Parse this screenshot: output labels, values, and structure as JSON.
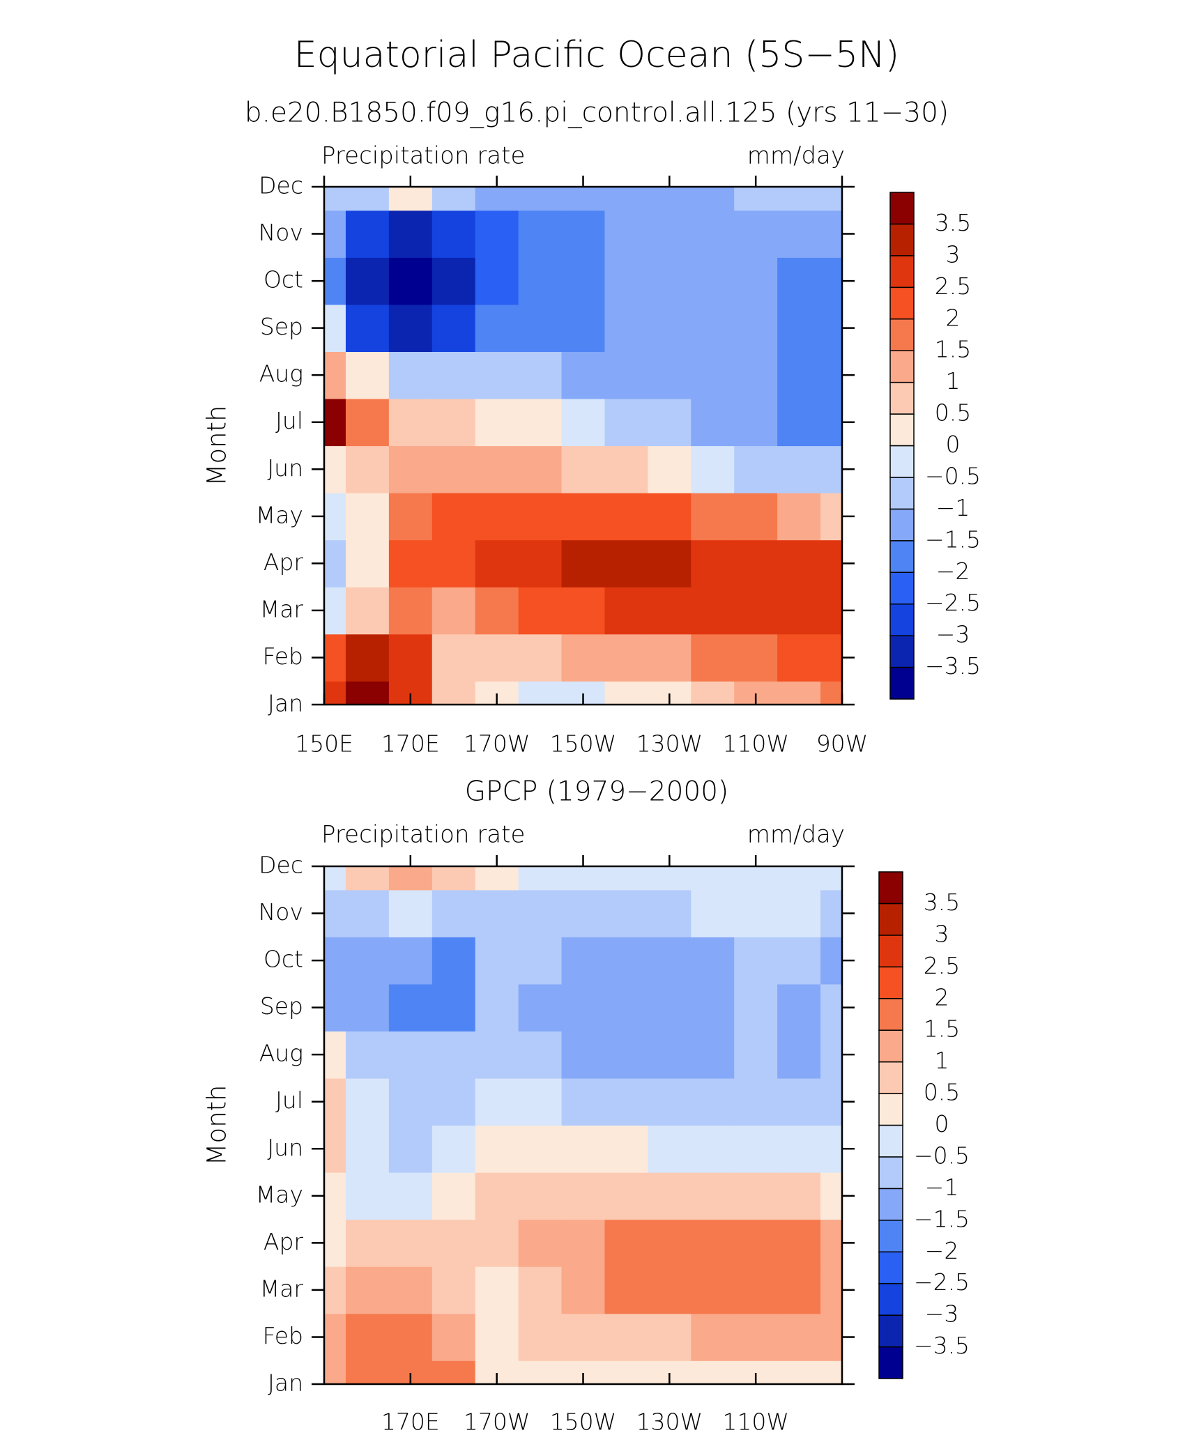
{
  "title": "Equatorial Pacific Ocean (5S−5N)",
  "chart_data": [
    {
      "type": "contour",
      "title": "b.e20.B1850.f09_g16.pi_control.all.125 (yrs 11−30)",
      "left_label": "Precipitation rate",
      "right_label": "mm/day",
      "y_label": "Month",
      "categories": [
        "Jan",
        "Feb",
        "Mar",
        "Apr",
        "May",
        "Jun",
        "Jul",
        "Aug",
        "Sep",
        "Oct",
        "Nov",
        "Dec"
      ],
      "x": [
        150,
        160,
        170,
        180,
        190,
        200,
        210,
        220,
        230,
        240,
        250,
        260,
        270
      ],
      "xlim": [
        150,
        270
      ],
      "xticks": [
        {
          "value": 150,
          "label": "150E"
        },
        {
          "value": 170,
          "label": "170E"
        },
        {
          "value": 190,
          "label": "170W"
        },
        {
          "value": 210,
          "label": "150W"
        },
        {
          "value": 230,
          "label": "130W"
        },
        {
          "value": 250,
          "label": "110W"
        },
        {
          "value": 270,
          "label": "90W"
        }
      ],
      "z": [
        [
          2.5,
          3.5,
          2.5,
          0.5,
          0.3,
          -0.3,
          -0.3,
          0.2,
          0.3,
          0.7,
          1,
          1.3,
          1.8
        ],
        [
          2,
          3,
          2.5,
          0.7,
          0.7,
          0.8,
          1,
          1.2,
          1.4,
          1.6,
          1.8,
          2,
          2.3
        ],
        [
          -0.3,
          0.5,
          1.5,
          1.3,
          1.8,
          2,
          2.3,
          2.5,
          2.6,
          2.7,
          2.8,
          2.8,
          2.8
        ],
        [
          -0.7,
          0.3,
          2,
          2.3,
          2.8,
          2.8,
          3,
          3.2,
          3.2,
          2.9,
          2.7,
          2.6,
          2.6
        ],
        [
          -0.3,
          0.3,
          1.5,
          2,
          2.3,
          2.2,
          2.2,
          2,
          2,
          1.8,
          1.5,
          1.2,
          0.8
        ],
        [
          0.3,
          0.7,
          1.3,
          1.3,
          1.2,
          1.2,
          0.9,
          0.7,
          0.3,
          -0.3,
          -0.8,
          -1,
          -1
        ],
        [
          3.8,
          1.8,
          0.7,
          0.6,
          0.3,
          0.2,
          -0.3,
          -0.7,
          -1,
          -1.2,
          -1.5,
          -1.7,
          -2
        ],
        [
          1,
          0.3,
          -0.7,
          -1,
          -1,
          -1,
          -1.2,
          -1.2,
          -1.3,
          -1.4,
          -1.5,
          -1.8,
          -2
        ],
        [
          -0.5,
          -2.8,
          -3.3,
          -2.8,
          -2,
          -1.8,
          -1.7,
          -1.5,
          -1.5,
          -1.5,
          -1.5,
          -1.8,
          -2
        ],
        [
          -2,
          -3.3,
          -3.8,
          -3.2,
          -2.2,
          -2,
          -1.8,
          -1.5,
          -1.5,
          -1.5,
          -1.5,
          -1.8,
          -2
        ],
        [
          -1.5,
          -2.7,
          -3.2,
          -2.7,
          -2.2,
          -1.8,
          -1.6,
          -1.5,
          -1.5,
          -1.5,
          -1.5,
          -1.5,
          -1.5
        ],
        [
          -1,
          -0.7,
          0.2,
          -0.7,
          -1.3,
          -1.5,
          -1.3,
          -1.2,
          -1.2,
          -1.1,
          -1,
          -1,
          -1
        ]
      ],
      "levels": [
        {
          "value": -3.5,
          "label": "−3.5"
        },
        {
          "value": -3,
          "label": "−3"
        },
        {
          "value": -2.5,
          "label": "−2.5"
        },
        {
          "value": -2,
          "label": "−2"
        },
        {
          "value": -1.5,
          "label": "−1.5"
        },
        {
          "value": -1,
          "label": "−1"
        },
        {
          "value": -0.5,
          "label": "−0.5"
        },
        0,
        0.5,
        1,
        1.5,
        2,
        2.5,
        3,
        3.5
      ],
      "colors": [
        "#000090",
        "#0b25b0",
        "#1443e0",
        "#2a60f3",
        "#4f84f5",
        "#85a8f8",
        "#b3cbfa",
        "#d7e6fb",
        "#fde9d9",
        "#fccab3",
        "#faa98a",
        "#f6794d",
        "#f55122",
        "#e0360f",
        "#b82100",
        "#8b0000"
      ]
    },
    {
      "type": "contour",
      "title": "GPCP (1979−2000)",
      "left_label": "Precipitation rate",
      "right_label": "mm/day",
      "y_label": "Month",
      "categories": [
        "Jan",
        "Feb",
        "Mar",
        "Apr",
        "May",
        "Jun",
        "Jul",
        "Aug",
        "Sep",
        "Oct",
        "Nov",
        "Dec"
      ],
      "x": [
        150,
        160,
        170,
        180,
        190,
        200,
        210,
        220,
        230,
        240,
        250,
        260,
        270
      ],
      "xlim": [
        150,
        270
      ],
      "xticks": [
        {
          "value": 170,
          "label": "170E"
        },
        {
          "value": 190,
          "label": "170W"
        },
        {
          "value": 210,
          "label": "150W"
        },
        {
          "value": 230,
          "label": "130W"
        },
        {
          "value": 250,
          "label": "110W"
        }
      ],
      "z": [
        [
          1.2,
          1.5,
          1.8,
          1.5,
          0.3,
          0.2,
          0.2,
          0.1,
          0.1,
          0.1,
          0.1,
          0.2,
          0.3
        ],
        [
          1.3,
          1.7,
          1.5,
          1.2,
          0.4,
          0.6,
          0.7,
          0.8,
          0.9,
          1,
          1,
          1.1,
          1.3
        ],
        [
          0.8,
          1.2,
          1.4,
          0.9,
          0.4,
          0.8,
          1.3,
          1.6,
          1.8,
          1.7,
          1.6,
          1.8,
          1.3
        ],
        [
          0.4,
          0.6,
          0.7,
          0.8,
          0.9,
          1,
          1.3,
          1.6,
          1.8,
          1.9,
          1.6,
          1.9,
          1.3
        ],
        [
          0.3,
          -0.2,
          -0.3,
          0.3,
          0.6,
          0.6,
          0.7,
          0.8,
          0.9,
          0.8,
          0.7,
          0.6,
          0.3
        ],
        [
          0.5,
          -0.4,
          -0.6,
          -0.5,
          0.2,
          0.1,
          0,
          0,
          -0.1,
          -0.2,
          -0.3,
          -0.3,
          -0.2
        ],
        [
          0.6,
          -0.5,
          -0.7,
          -0.7,
          -0.3,
          -0.5,
          -0.6,
          -0.6,
          -0.6,
          -0.6,
          -0.7,
          -0.9,
          -0.8
        ],
        [
          0.3,
          -0.7,
          -0.8,
          -0.8,
          -0.8,
          -0.9,
          -1.1,
          -1.1,
          -1.1,
          -1.1,
          -0.8,
          -1.1,
          -0.8
        ],
        [
          -1.1,
          -1.2,
          -1.8,
          -1.6,
          -1,
          -1.1,
          -1.3,
          -1.3,
          -1.3,
          -1.2,
          -0.9,
          -1.1,
          -1
        ],
        [
          -1.2,
          -1.1,
          -1.5,
          -1.7,
          -0.9,
          -0.8,
          -1.2,
          -1.3,
          -1.3,
          -1.1,
          -0.8,
          -1,
          -1.2
        ],
        [
          -0.8,
          -0.6,
          -0.5,
          -0.6,
          -0.7,
          -0.7,
          -0.6,
          -0.7,
          -0.6,
          -0.5,
          -0.5,
          -0.5,
          -0.7
        ],
        [
          -0.2,
          0.8,
          1.3,
          0.8,
          0.4,
          -0.2,
          -0.3,
          -0.4,
          -0.3,
          -0.3,
          -0.3,
          -0.3,
          -0.4
        ]
      ],
      "levels": [
        {
          "value": -3.5,
          "label": "−3.5"
        },
        {
          "value": -3,
          "label": "−3"
        },
        {
          "value": -2.5,
          "label": "−2.5"
        },
        {
          "value": -2,
          "label": "−2"
        },
        {
          "value": -1.5,
          "label": "−1.5"
        },
        {
          "value": -1,
          "label": "−1"
        },
        {
          "value": -0.5,
          "label": "−0.5"
        },
        0,
        0.5,
        1,
        1.5,
        2,
        2.5,
        3,
        3.5
      ],
      "colors": [
        "#000090",
        "#0b25b0",
        "#1443e0",
        "#2a60f3",
        "#4f84f5",
        "#85a8f8",
        "#b3cbfa",
        "#d7e6fb",
        "#fde9d9",
        "#fccab3",
        "#faa98a",
        "#f6794d",
        "#f55122",
        "#e0360f",
        "#b82100",
        "#8b0000"
      ]
    }
  ]
}
